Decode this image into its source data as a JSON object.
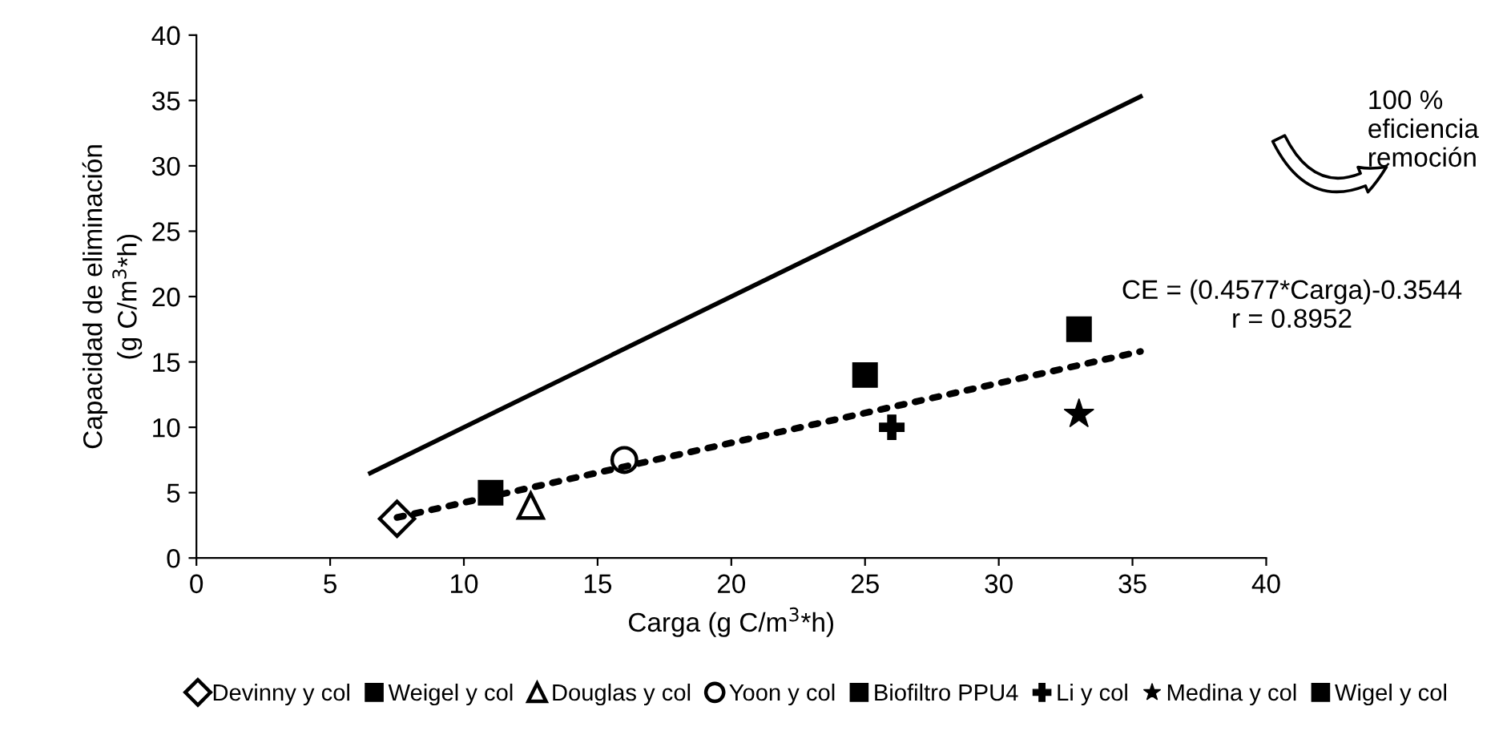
{
  "chart_data": {
    "type": "scatter",
    "xlabel": "Carga (g C/m$^{3}$*h)",
    "ylabel": "Capacidad de eliminación\n(g C/m$^{3}$*h)",
    "xlim": [
      0,
      40
    ],
    "xticks": [
      0,
      5,
      10,
      15,
      20,
      25,
      30,
      35,
      40
    ],
    "ylim": [
      0,
      40
    ],
    "yticks": [
      0,
      5,
      10,
      15,
      20,
      25,
      30,
      35,
      40
    ],
    "grid": false,
    "legend": "bottom",
    "annotations": [
      "100 %\neficiencia\nremoción",
      "CE = (0.4577*Carga)-0.3544\nr = 0.8952"
    ],
    "series": [
      {
        "name": "Devinny y col",
        "color": "#000000",
        "marker": "diamond",
        "x": [
          7.5
        ],
        "values": [
          3
        ]
      },
      {
        "name": "Weigel y col",
        "color": "#000000",
        "marker": "square",
        "x": [
          11
        ],
        "values": [
          5
        ]
      },
      {
        "name": "Douglas y col",
        "color": "#000000",
        "marker": "triangle",
        "x": [
          12.5
        ],
        "values": [
          4
        ]
      },
      {
        "name": "Yoon y col",
        "color": "#000000",
        "marker": "circle",
        "x": [
          16
        ],
        "values": [
          7.5
        ]
      },
      {
        "name": "Biofiltro PPU4",
        "color": "#000000",
        "marker": "square",
        "x": [
          25
        ],
        "values": [
          14
        ]
      },
      {
        "name": "Li y col",
        "color": "#000000",
        "marker": "cross",
        "x": [
          26
        ],
        "values": [
          10
        ]
      },
      {
        "name": "Medina y col",
        "color": "#000000",
        "marker": "star",
        "x": [
          33
        ],
        "values": [
          11
        ]
      },
      {
        "name": "Wigel y col",
        "color": "#000000",
        "marker": "square",
        "x": [
          33
        ],
        "values": [
          17.5
        ]
      },
      {
        "type": "line",
        "color": "#000000",
        "line_style": "solid",
        "x": [
          6.5,
          35.3
        ],
        "values": [
          6.5,
          35.3
        ]
      },
      {
        "type": "line",
        "color": "#000000",
        "line_style": "dotted",
        "x": [
          7.5,
          35.3
        ],
        "values": [
          3.1,
          15.8
        ]
      }
    ]
  }
}
